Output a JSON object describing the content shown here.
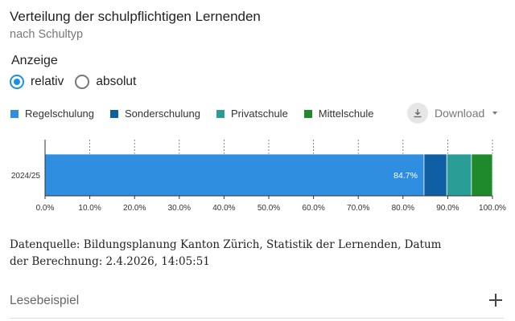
{
  "header": {
    "title": "Verteilung der schulpflichtigen Lernenden",
    "subtitle": "nach Schultyp"
  },
  "display": {
    "label": "Anzeige",
    "options": [
      {
        "label": "relativ",
        "selected": true
      },
      {
        "label": "absolut",
        "selected": false
      }
    ]
  },
  "download": {
    "label": "Download"
  },
  "chart_data": {
    "type": "bar",
    "orientation": "horizontal",
    "stacked": true,
    "categories": [
      "2024/25"
    ],
    "series": [
      {
        "name": "Regelschulung",
        "values": [
          84.7
        ],
        "color": "#2f8ee0",
        "data_label": "84.7%"
      },
      {
        "name": "Sonderschulung",
        "values": [
          5.1
        ],
        "color": "#0f5fa5"
      },
      {
        "name": "Privatschule",
        "values": [
          5.5
        ],
        "color": "#2a9d96"
      },
      {
        "name": "Mittelschule",
        "values": [
          4.7
        ],
        "color": "#1f8a2b"
      }
    ],
    "xlim": [
      0,
      100
    ],
    "x_ticks": [
      "0.0%",
      "10.0%",
      "20.0%",
      "30.0%",
      "40.0%",
      "50.0%",
      "60.0%",
      "70.0%",
      "80.0%",
      "90.0%",
      "100.0%"
    ],
    "grid": true,
    "legend_position": "top-left"
  },
  "source_text": "Datenquelle: Bildungsplanung Kanton Zürich, Statistik der Lernenden, Datum der Berechnung: 2.4.2026, 14:05:51",
  "accordion": {
    "label": "Lesebeispiel"
  }
}
